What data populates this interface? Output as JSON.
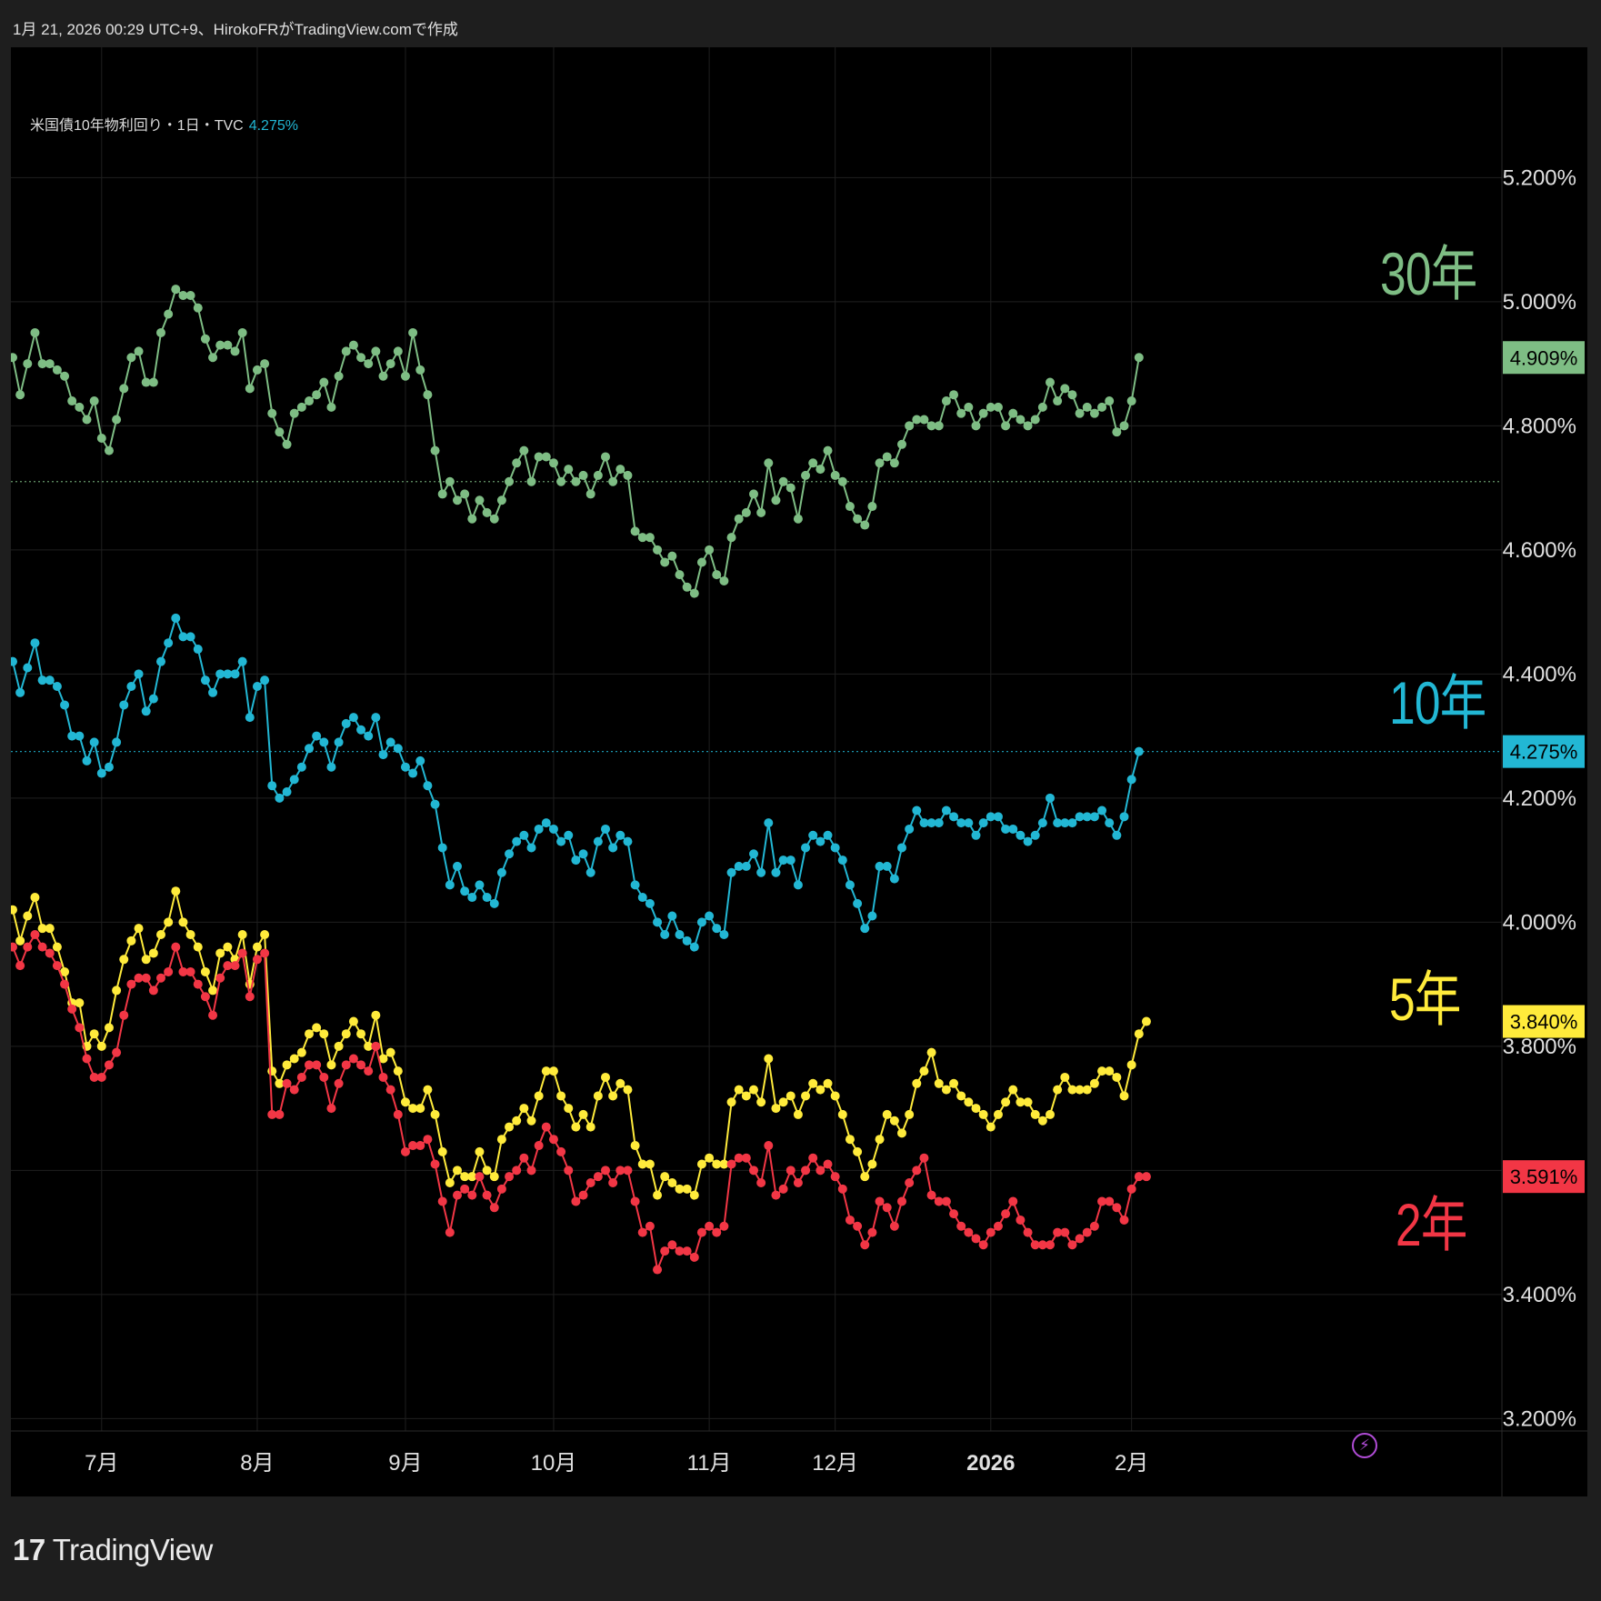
{
  "header": {
    "timestamp": "1月 21, 2026 00:29 UTC+9、HirokoFRがTradingView.comで作成"
  },
  "legend": {
    "symbol": "米国債10年物利回り・1日・TVC",
    "value": "4.275%"
  },
  "brand": {
    "logo": "17",
    "name": "TradingView"
  },
  "colors": {
    "y30": "#7ebd84",
    "y10": "#22b7d4",
    "y5": "#ffeb3b",
    "y2": "#f23645",
    "grid": "#1f1f1f",
    "axis_text": "#e0e0e0"
  },
  "chart_data": {
    "type": "line",
    "title": "米国債10年物利回り・1日・TVC",
    "ylabel": "",
    "xlabel": "",
    "ylim": [
      3.18,
      5.41
    ],
    "y_ticks": [
      "3.200%",
      "3.400%",
      "3.600%",
      "3.800%",
      "4.000%",
      "4.200%",
      "4.400%",
      "4.600%",
      "4.800%",
      "5.000%",
      "5.200%"
    ],
    "x_ticks": [
      {
        "label": "7月",
        "index": 12,
        "bold": false
      },
      {
        "label": "8月",
        "index": 33,
        "bold": false
      },
      {
        "label": "9月",
        "index": 53,
        "bold": false
      },
      {
        "label": "10月",
        "index": 73,
        "bold": false
      },
      {
        "label": "11月",
        "index": 94,
        "bold": false
      },
      {
        "label": "12月",
        "index": 111,
        "bold": false
      },
      {
        "label": "2026",
        "index": 132,
        "bold": true
      },
      {
        "label": "2月",
        "index": 151,
        "bold": false
      }
    ],
    "series": [
      {
        "name": "30年",
        "label": "30年",
        "last_label": "4.909%",
        "color_key": "y30",
        "ref_level": 4.71,
        "values": [
          4.91,
          4.85,
          4.9,
          4.95,
          4.9,
          4.9,
          4.89,
          4.88,
          4.84,
          4.83,
          4.81,
          4.84,
          4.78,
          4.76,
          4.81,
          4.86,
          4.91,
          4.92,
          4.87,
          4.87,
          4.95,
          4.98,
          5.02,
          5.01,
          5.01,
          4.99,
          4.94,
          4.91,
          4.93,
          4.93,
          4.92,
          4.95,
          4.86,
          4.89,
          4.9,
          4.82,
          4.79,
          4.77,
          4.82,
          4.83,
          4.84,
          4.85,
          4.87,
          4.83,
          4.88,
          4.92,
          4.93,
          4.91,
          4.9,
          4.92,
          4.88,
          4.9,
          4.92,
          4.88,
          4.95,
          4.89,
          4.85,
          4.76,
          4.69,
          4.71,
          4.68,
          4.69,
          4.65,
          4.68,
          4.66,
          4.65,
          4.68,
          4.71,
          4.74,
          4.76,
          4.71,
          4.75,
          4.75,
          4.74,
          4.71,
          4.73,
          4.71,
          4.72,
          4.69,
          4.72,
          4.75,
          4.71,
          4.73,
          4.72,
          4.63,
          4.62,
          4.62,
          4.6,
          4.58,
          4.59,
          4.56,
          4.54,
          4.53,
          4.58,
          4.6,
          4.56,
          4.55,
          4.62,
          4.65,
          4.66,
          4.69,
          4.66,
          4.74,
          4.68,
          4.71,
          4.7,
          4.65,
          4.72,
          4.74,
          4.73,
          4.76,
          4.72,
          4.71,
          4.67,
          4.65,
          4.64,
          4.67,
          4.74,
          4.75,
          4.74,
          4.77,
          4.8,
          4.81,
          4.81,
          4.8,
          4.8,
          4.84,
          4.85,
          4.82,
          4.83,
          4.8,
          4.82,
          4.83,
          4.83,
          4.8,
          4.82,
          4.81,
          4.8,
          4.81,
          4.83,
          4.87,
          4.84,
          4.86,
          4.85,
          4.82,
          4.83,
          4.82,
          4.83,
          4.84,
          4.79,
          4.8,
          4.84,
          4.91
        ]
      },
      {
        "name": "10年",
        "label": "10年",
        "last_label": "4.275%",
        "color_key": "y10",
        "ref_level": 4.275,
        "values": [
          4.42,
          4.37,
          4.41,
          4.45,
          4.39,
          4.39,
          4.38,
          4.35,
          4.3,
          4.3,
          4.26,
          4.29,
          4.24,
          4.25,
          4.29,
          4.35,
          4.38,
          4.4,
          4.34,
          4.36,
          4.42,
          4.45,
          4.49,
          4.46,
          4.46,
          4.44,
          4.39,
          4.37,
          4.4,
          4.4,
          4.4,
          4.42,
          4.33,
          4.38,
          4.39,
          4.22,
          4.2,
          4.21,
          4.23,
          4.25,
          4.28,
          4.3,
          4.29,
          4.25,
          4.29,
          4.32,
          4.33,
          4.31,
          4.3,
          4.33,
          4.27,
          4.29,
          4.28,
          4.25,
          4.24,
          4.26,
          4.22,
          4.19,
          4.12,
          4.06,
          4.09,
          4.05,
          4.04,
          4.06,
          4.04,
          4.03,
          4.08,
          4.11,
          4.13,
          4.14,
          4.12,
          4.15,
          4.16,
          4.15,
          4.13,
          4.14,
          4.1,
          4.11,
          4.08,
          4.13,
          4.15,
          4.12,
          4.14,
          4.13,
          4.06,
          4.04,
          4.03,
          4.0,
          3.98,
          4.01,
          3.98,
          3.97,
          3.96,
          4.0,
          4.01,
          3.99,
          3.98,
          4.08,
          4.09,
          4.09,
          4.11,
          4.08,
          4.16,
          4.08,
          4.1,
          4.1,
          4.06,
          4.12,
          4.14,
          4.13,
          4.14,
          4.12,
          4.1,
          4.06,
          4.03,
          3.99,
          4.01,
          4.09,
          4.09,
          4.07,
          4.12,
          4.15,
          4.18,
          4.16,
          4.16,
          4.16,
          4.18,
          4.17,
          4.16,
          4.16,
          4.14,
          4.16,
          4.17,
          4.17,
          4.15,
          4.15,
          4.14,
          4.13,
          4.14,
          4.16,
          4.2,
          4.16,
          4.16,
          4.16,
          4.17,
          4.17,
          4.17,
          4.18,
          4.16,
          4.14,
          4.17,
          4.23,
          4.275
        ]
      },
      {
        "name": "5年",
        "label": "5年",
        "last_label": "3.840%",
        "color_key": "y5",
        "ref_level": 3.84,
        "values": [
          4.02,
          3.97,
          4.01,
          4.04,
          3.99,
          3.99,
          3.96,
          3.92,
          3.87,
          3.87,
          3.8,
          3.82,
          3.8,
          3.83,
          3.89,
          3.94,
          3.97,
          3.99,
          3.94,
          3.95,
          3.98,
          4.0,
          4.05,
          4.0,
          3.98,
          3.96,
          3.92,
          3.89,
          3.95,
          3.96,
          3.94,
          3.98,
          3.9,
          3.96,
          3.98,
          3.76,
          3.74,
          3.77,
          3.78,
          3.79,
          3.82,
          3.83,
          3.82,
          3.77,
          3.8,
          3.82,
          3.84,
          3.82,
          3.8,
          3.85,
          3.78,
          3.79,
          3.76,
          3.71,
          3.7,
          3.7,
          3.73,
          3.69,
          3.63,
          3.58,
          3.6,
          3.59,
          3.59,
          3.63,
          3.6,
          3.59,
          3.65,
          3.67,
          3.68,
          3.7,
          3.68,
          3.72,
          3.76,
          3.76,
          3.72,
          3.7,
          3.67,
          3.69,
          3.67,
          3.72,
          3.75,
          3.72,
          3.74,
          3.73,
          3.64,
          3.61,
          3.61,
          3.56,
          3.59,
          3.58,
          3.57,
          3.57,
          3.56,
          3.61,
          3.62,
          3.61,
          3.61,
          3.71,
          3.73,
          3.72,
          3.73,
          3.71,
          3.78,
          3.7,
          3.71,
          3.72,
          3.69,
          3.72,
          3.74,
          3.73,
          3.74,
          3.72,
          3.69,
          3.65,
          3.63,
          3.59,
          3.61,
          3.65,
          3.69,
          3.68,
          3.66,
          3.69,
          3.74,
          3.76,
          3.79,
          3.74,
          3.73,
          3.74,
          3.72,
          3.71,
          3.7,
          3.69,
          3.67,
          3.69,
          3.71,
          3.73,
          3.71,
          3.71,
          3.69,
          3.68,
          3.69,
          3.73,
          3.75,
          3.73,
          3.73,
          3.73,
          3.74,
          3.76,
          3.76,
          3.75,
          3.72,
          3.77,
          3.82,
          3.84
        ]
      },
      {
        "name": "2年",
        "label": "2年",
        "last_label": "3.591%",
        "color_key": "y2",
        "ref_level": 3.591,
        "values": [
          3.96,
          3.93,
          3.96,
          3.98,
          3.96,
          3.95,
          3.93,
          3.9,
          3.86,
          3.83,
          3.78,
          3.75,
          3.75,
          3.77,
          3.79,
          3.85,
          3.9,
          3.91,
          3.91,
          3.89,
          3.91,
          3.92,
          3.96,
          3.92,
          3.92,
          3.9,
          3.88,
          3.85,
          3.91,
          3.93,
          3.93,
          3.95,
          3.88,
          3.94,
          3.95,
          3.69,
          3.69,
          3.74,
          3.73,
          3.75,
          3.77,
          3.77,
          3.75,
          3.7,
          3.74,
          3.77,
          3.78,
          3.77,
          3.76,
          3.8,
          3.75,
          3.73,
          3.69,
          3.63,
          3.64,
          3.64,
          3.65,
          3.61,
          3.55,
          3.5,
          3.56,
          3.57,
          3.56,
          3.59,
          3.56,
          3.54,
          3.57,
          3.59,
          3.6,
          3.62,
          3.6,
          3.64,
          3.67,
          3.65,
          3.63,
          3.6,
          3.55,
          3.56,
          3.58,
          3.59,
          3.6,
          3.58,
          3.6,
          3.6,
          3.55,
          3.5,
          3.51,
          3.44,
          3.47,
          3.48,
          3.47,
          3.47,
          3.46,
          3.5,
          3.51,
          3.5,
          3.51,
          3.61,
          3.62,
          3.62,
          3.6,
          3.58,
          3.64,
          3.56,
          3.57,
          3.6,
          3.58,
          3.6,
          3.62,
          3.6,
          3.61,
          3.59,
          3.57,
          3.52,
          3.51,
          3.48,
          3.5,
          3.55,
          3.54,
          3.51,
          3.55,
          3.58,
          3.6,
          3.62,
          3.56,
          3.55,
          3.55,
          3.53,
          3.51,
          3.5,
          3.49,
          3.48,
          3.5,
          3.51,
          3.53,
          3.55,
          3.52,
          3.5,
          3.48,
          3.48,
          3.48,
          3.5,
          3.5,
          3.48,
          3.49,
          3.5,
          3.51,
          3.55,
          3.55,
          3.54,
          3.52,
          3.57,
          3.59,
          3.59
        ]
      }
    ]
  }
}
